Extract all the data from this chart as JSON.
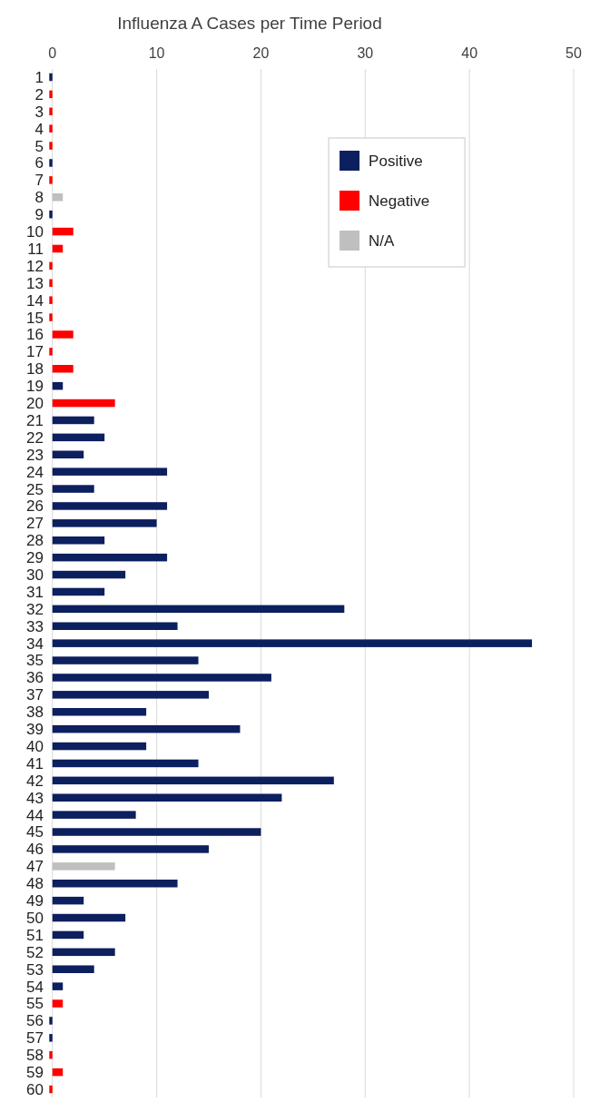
{
  "chart_data": {
    "type": "bar",
    "orientation": "horizontal",
    "title": "Influenza A Cases per Time Period",
    "categories": [
      "1",
      "2",
      "3",
      "4",
      "5",
      "6",
      "7",
      "8",
      "9",
      "10",
      "11",
      "12",
      "13",
      "14",
      "15",
      "16",
      "17",
      "18",
      "19",
      "20",
      "21",
      "22",
      "23",
      "24",
      "25",
      "26",
      "27",
      "28",
      "29",
      "30",
      "31",
      "32",
      "33",
      "34",
      "35",
      "36",
      "37",
      "38",
      "39",
      "40",
      "41",
      "42",
      "43",
      "44",
      "45",
      "46",
      "47",
      "48",
      "49",
      "50",
      "51",
      "52",
      "53",
      "54",
      "55",
      "56",
      "57",
      "58",
      "59",
      "60"
    ],
    "series": [
      {
        "name": "Positive",
        "color": "#0c1f5e",
        "values": [
          -0.3,
          null,
          null,
          null,
          null,
          -0.3,
          null,
          null,
          -0.3,
          null,
          null,
          null,
          null,
          null,
          null,
          null,
          null,
          null,
          1,
          null,
          4,
          5,
          3,
          11,
          4,
          11,
          10,
          5,
          11,
          7,
          5,
          28,
          12,
          46,
          14,
          21,
          15,
          9,
          18,
          9,
          14,
          27,
          22,
          8,
          20,
          15,
          null,
          12,
          3,
          7,
          3,
          6,
          4,
          1,
          null,
          -0.3,
          -0.3,
          null,
          null,
          null
        ]
      },
      {
        "name": "Negative",
        "color": "#ff0000",
        "values": [
          null,
          -0.3,
          -0.3,
          -0.3,
          -0.3,
          null,
          -0.3,
          null,
          null,
          2,
          1,
          -0.3,
          -0.3,
          -0.3,
          -0.3,
          2,
          -0.3,
          2,
          null,
          6,
          null,
          null,
          null,
          null,
          null,
          null,
          null,
          null,
          null,
          null,
          null,
          null,
          null,
          null,
          null,
          null,
          null,
          null,
          null,
          null,
          null,
          null,
          null,
          null,
          null,
          null,
          null,
          null,
          null,
          null,
          null,
          null,
          null,
          null,
          1,
          null,
          null,
          -0.3,
          1,
          -0.3
        ]
      },
      {
        "name": "N/A",
        "color": "#bfbfbf",
        "values": [
          null,
          null,
          null,
          null,
          null,
          null,
          null,
          1,
          null,
          null,
          null,
          null,
          null,
          null,
          null,
          null,
          null,
          null,
          null,
          null,
          null,
          null,
          null,
          null,
          null,
          null,
          null,
          null,
          null,
          null,
          null,
          null,
          null,
          null,
          null,
          null,
          null,
          null,
          null,
          null,
          null,
          null,
          null,
          null,
          null,
          null,
          6,
          null,
          null,
          null,
          null,
          null,
          null,
          null,
          null,
          null,
          null,
          null,
          null,
          null
        ]
      }
    ],
    "xlim": [
      -0.5,
      50
    ],
    "xticks": [
      0,
      10,
      20,
      30,
      40,
      50
    ],
    "grid": "x",
    "legend": "top right"
  }
}
